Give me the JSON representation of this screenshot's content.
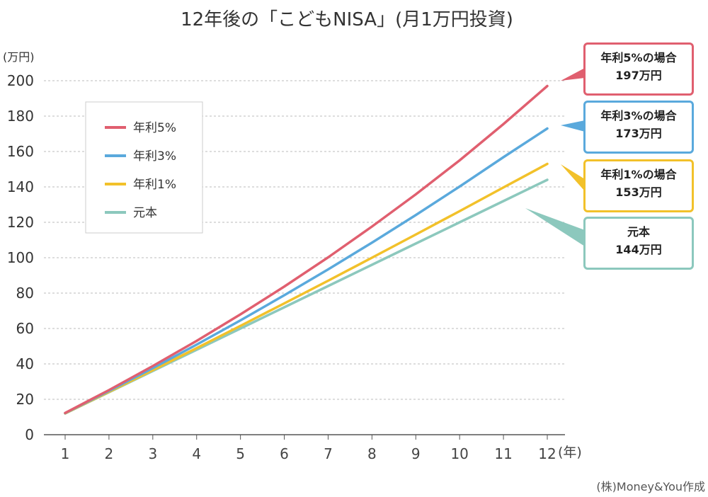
{
  "chart_data": {
    "type": "line",
    "title": "12年後の「こどもNISA」(月1万円投資)",
    "ylabel": "(万円)",
    "xlabel": "(年)",
    "x": [
      1,
      2,
      3,
      4,
      5,
      6,
      7,
      8,
      9,
      10,
      11,
      12
    ],
    "ylim": [
      0,
      200
    ],
    "yticks": [
      0,
      20,
      40,
      60,
      80,
      100,
      120,
      140,
      160,
      180,
      200
    ],
    "grid": true,
    "legend_position": "top-left",
    "series": [
      {
        "name": "年利5%",
        "color": "#e05f6f",
        "values": [
          12.3,
          25.2,
          38.8,
          53.0,
          68.0,
          83.7,
          100.2,
          117.6,
          135.8,
          155.0,
          175.5,
          197
        ]
      },
      {
        "name": "年利3%",
        "color": "#5aa9dc",
        "values": [
          12.2,
          24.7,
          37.6,
          50.9,
          64.6,
          78.8,
          93.4,
          108.5,
          124.1,
          140.2,
          156.8,
          173
        ]
      },
      {
        "name": "年利1%",
        "color": "#f2c12a",
        "values": [
          12.1,
          24.2,
          36.5,
          48.9,
          61.5,
          74.2,
          87.0,
          100.0,
          113.1,
          126.3,
          139.7,
          153
        ]
      },
      {
        "name": "元本",
        "color": "#8cc8bd",
        "values": [
          12,
          24,
          36,
          48,
          60,
          72,
          84,
          96,
          108,
          120,
          132,
          144
        ]
      }
    ],
    "annotations": [
      {
        "line1": "年利5%の場合",
        "line2": "197万円"
      },
      {
        "line1": "年利3%の場合",
        "line2": "173万円"
      },
      {
        "line1": "年利1%の場合",
        "line2": "153万円"
      },
      {
        "line1": "元本",
        "line2": "144万円"
      }
    ],
    "source": "(株)Money&You作成"
  }
}
